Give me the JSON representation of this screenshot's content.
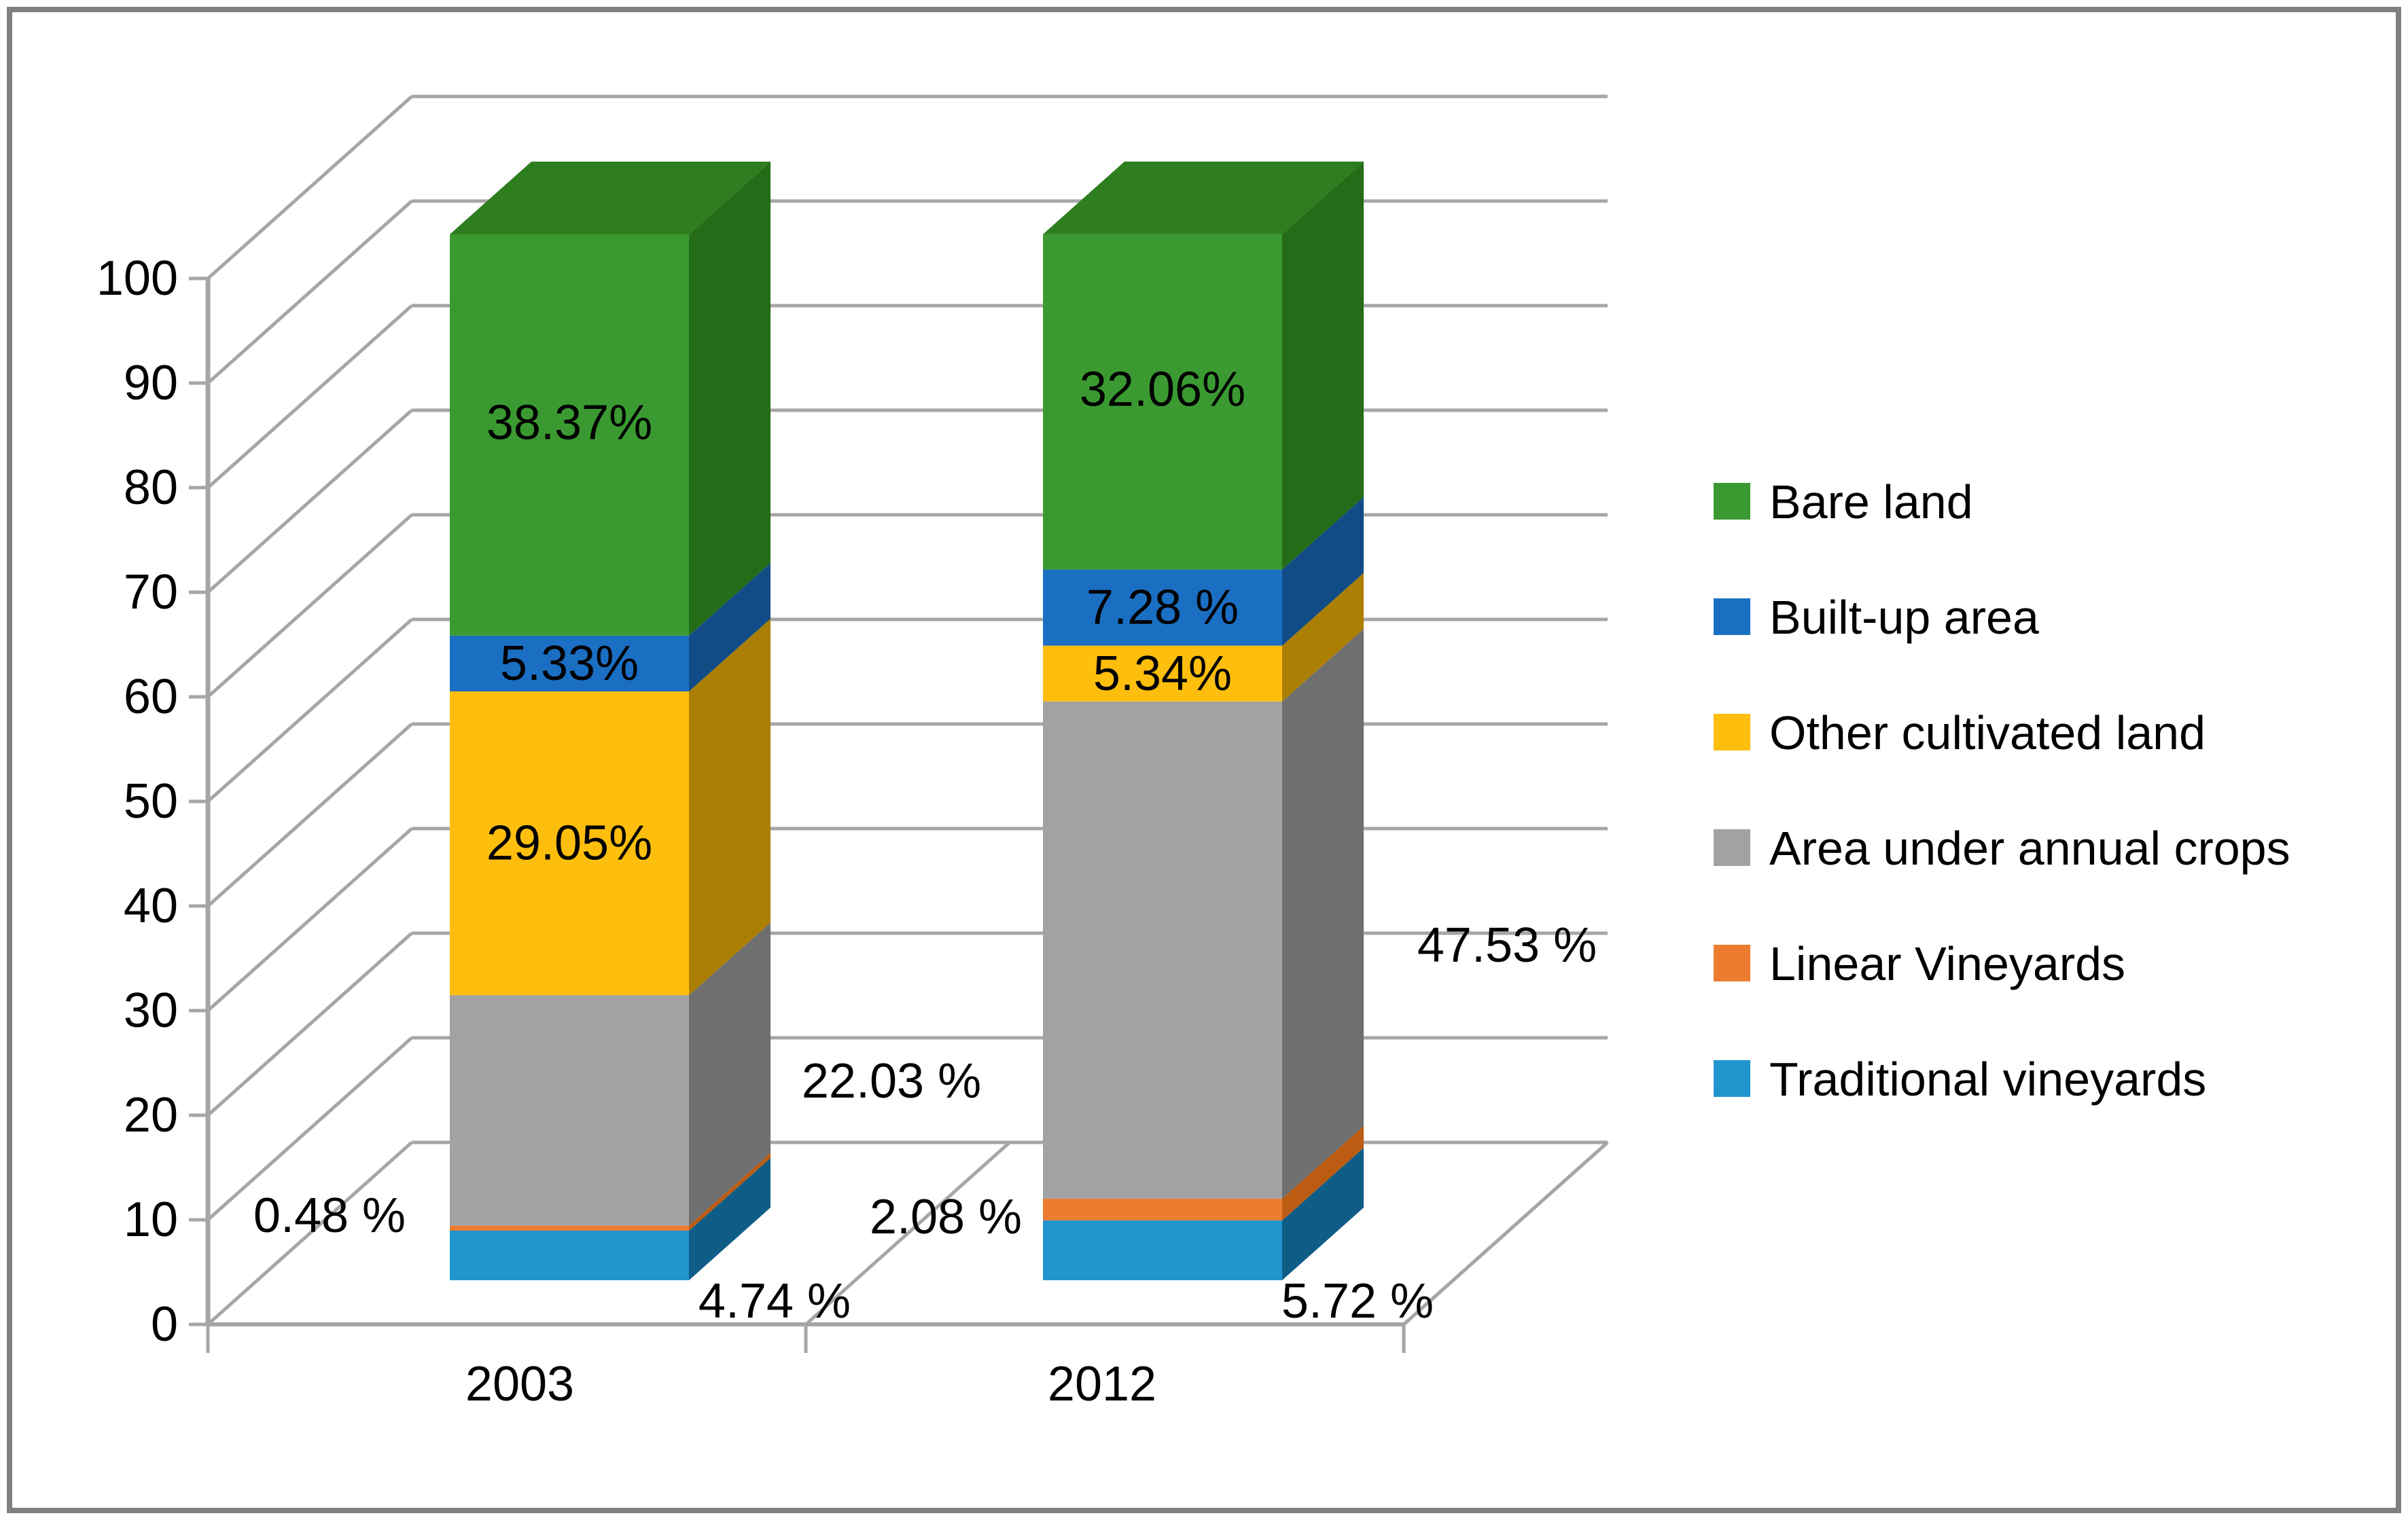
{
  "chart_data": {
    "type": "bar",
    "variant": "3d-stacked-column",
    "title": "",
    "xlabel": "",
    "ylabel": "",
    "ylim": [
      0,
      100
    ],
    "grid": true,
    "yticks": [
      "0",
      "10",
      "20",
      "30",
      "40",
      "50",
      "60",
      "70",
      "80",
      "90",
      "100"
    ],
    "categories": [
      "2003",
      "2012"
    ],
    "series": [
      {
        "name": "Traditional vineyards",
        "color": "#2095CE",
        "side_color": "#0F5D86",
        "values": [
          4.74,
          5.72
        ],
        "labels": [
          "4.74 %",
          "5.72 %"
        ]
      },
      {
        "name": "Linear Vineyards",
        "color": "#EC7C30",
        "side_color": "#BC5B12",
        "values": [
          0.48,
          2.08
        ],
        "labels": [
          "0.48 %",
          "2.08 %"
        ]
      },
      {
        "name": "Area under annual crops",
        "color": "#A2A2A2",
        "side_color": "#6F6F6F",
        "values": [
          22.03,
          47.53
        ],
        "labels": [
          "22.03 %",
          "47.53 %"
        ]
      },
      {
        "name": "Other cultivated land",
        "color": "#FDBE0E",
        "side_color": "#AB7F04",
        "values": [
          29.05,
          5.34
        ],
        "labels": [
          "29.05%",
          "5.34%"
        ]
      },
      {
        "name": "Built-up area",
        "color": "#1B6FC3",
        "side_color": "#114C86",
        "values": [
          5.33,
          7.28
        ],
        "labels": [
          "5.33%",
          "7.28 %"
        ]
      },
      {
        "name": "Bare land",
        "color": "#3A9A31",
        "side_color": "#256C18",
        "top_color": "#2E7D1E",
        "values": [
          38.37,
          32.06
        ],
        "labels": [
          "38.37%",
          "32.06%"
        ]
      }
    ],
    "legend": {
      "position": "right",
      "entries": [
        "Bare land",
        "Built-up area",
        "Other cultivated land",
        "Area under annual crops",
        "Linear Vineyards",
        "Traditional vineyards"
      ]
    }
  },
  "colors": {
    "border": "#7F7F7F",
    "gridline": "#A6A6A6",
    "axis": "#A6A6A6",
    "background": "#FFFFFF",
    "label_text": "#000000"
  }
}
